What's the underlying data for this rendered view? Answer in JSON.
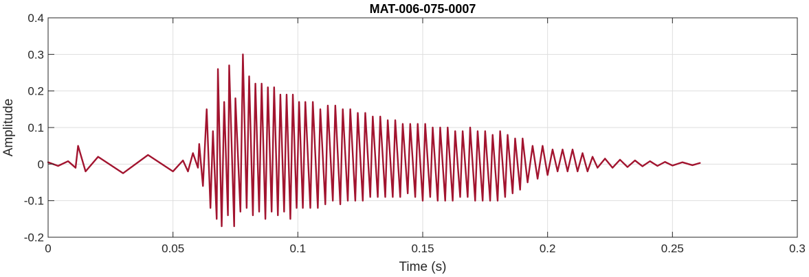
{
  "chart_data": {
    "type": "line",
    "title": "MAT-006-075-0007",
    "xlabel": "Time (s)",
    "ylabel": "Amplitude",
    "xlim": [
      0,
      0.3
    ],
    "ylim": [
      -0.2,
      0.4
    ],
    "x_ticks": [
      0,
      0.05,
      0.1,
      0.15,
      0.2,
      0.25,
      0.3
    ],
    "x_tick_labels": [
      "0",
      "0.05",
      "0.1",
      "0.15",
      "0.2",
      "0.25",
      "0.3"
    ],
    "y_ticks": [
      -0.2,
      -0.1,
      0,
      0.1,
      0.2,
      0.3,
      0.4
    ],
    "y_tick_labels": [
      "-0.2",
      "-0.1",
      "0",
      "0.1",
      "0.2",
      "0.3",
      "0.4"
    ],
    "grid": true,
    "legend": "none",
    "series": [
      {
        "color": "#A2142F",
        "x": [
          0,
          0.004,
          0.008,
          0.011,
          0.012,
          0.015,
          0.02,
          0.03,
          0.04,
          0.05,
          0.054,
          0.056,
          0.058,
          0.06,
          0.0605,
          0.062,
          0.0635,
          0.065,
          0.066,
          0.0675,
          0.068,
          0.0695,
          0.0705,
          0.072,
          0.0725,
          0.0745,
          0.075,
          0.077,
          0.078,
          0.0795,
          0.0805,
          0.082,
          0.083,
          0.0845,
          0.0855,
          0.087,
          0.088,
          0.0895,
          0.0905,
          0.092,
          0.093,
          0.0945,
          0.0955,
          0.097,
          0.098,
          0.0995,
          0.1005,
          0.102,
          0.103,
          0.105,
          0.106,
          0.108,
          0.109,
          0.111,
          0.112,
          0.114,
          0.115,
          0.117,
          0.118,
          0.12,
          0.121,
          0.123,
          0.124,
          0.126,
          0.127,
          0.129,
          0.13,
          0.132,
          0.133,
          0.135,
          0.136,
          0.138,
          0.139,
          0.141,
          0.142,
          0.144,
          0.145,
          0.147,
          0.148,
          0.15,
          0.151,
          0.153,
          0.154,
          0.156,
          0.157,
          0.159,
          0.16,
          0.162,
          0.163,
          0.165,
          0.166,
          0.168,
          0.169,
          0.171,
          0.172,
          0.174,
          0.175,
          0.177,
          0.178,
          0.18,
          0.181,
          0.183,
          0.184,
          0.186,
          0.187,
          0.189,
          0.19,
          0.192,
          0.194,
          0.196,
          0.198,
          0.2,
          0.202,
          0.204,
          0.206,
          0.208,
          0.21,
          0.212,
          0.214,
          0.216,
          0.218,
          0.22,
          0.223,
          0.226,
          0.229,
          0.232,
          0.235,
          0.238,
          0.241,
          0.244,
          0.247,
          0.25,
          0.254,
          0.258,
          0.261
        ],
        "y": [
          0.005,
          -0.005,
          0.008,
          -0.01,
          0.05,
          -0.02,
          0.02,
          -0.025,
          0.025,
          -0.02,
          0.01,
          -0.02,
          0.03,
          -0.01,
          0.055,
          -0.06,
          0.15,
          -0.12,
          0.09,
          -0.15,
          0.26,
          -0.17,
          0.17,
          -0.14,
          0.27,
          -0.17,
          0.18,
          -0.13,
          0.3,
          -0.12,
          0.24,
          -0.14,
          0.22,
          -0.13,
          0.22,
          -0.15,
          0.21,
          -0.13,
          0.21,
          -0.14,
          0.19,
          -0.13,
          0.19,
          -0.15,
          0.19,
          -0.12,
          0.17,
          -0.12,
          0.17,
          -0.12,
          0.17,
          -0.12,
          0.15,
          -0.11,
          0.16,
          -0.1,
          0.16,
          -0.11,
          0.15,
          -0.1,
          0.15,
          -0.1,
          0.14,
          -0.1,
          0.14,
          -0.09,
          0.13,
          -0.09,
          0.13,
          -0.09,
          0.12,
          -0.09,
          0.12,
          -0.09,
          0.11,
          -0.08,
          0.11,
          -0.09,
          0.11,
          -0.1,
          0.11,
          -0.09,
          0.1,
          -0.1,
          0.1,
          -0.1,
          0.1,
          -0.1,
          0.09,
          -0.09,
          0.09,
          -0.09,
          0.1,
          -0.1,
          0.09,
          -0.1,
          0.09,
          -0.1,
          0.08,
          -0.1,
          0.09,
          -0.09,
          0.08,
          -0.08,
          0.07,
          -0.07,
          0.07,
          -0.05,
          0.05,
          -0.04,
          0.05,
          -0.03,
          0.04,
          -0.02,
          0.04,
          -0.02,
          0.04,
          -0.02,
          0.03,
          -0.02,
          0.02,
          -0.01,
          0.015,
          -0.01,
          0.012,
          -0.008,
          0.01,
          -0.006,
          0.008,
          -0.005,
          0.006,
          -0.004,
          0.005,
          -0.003,
          0.003
        ]
      }
    ]
  }
}
